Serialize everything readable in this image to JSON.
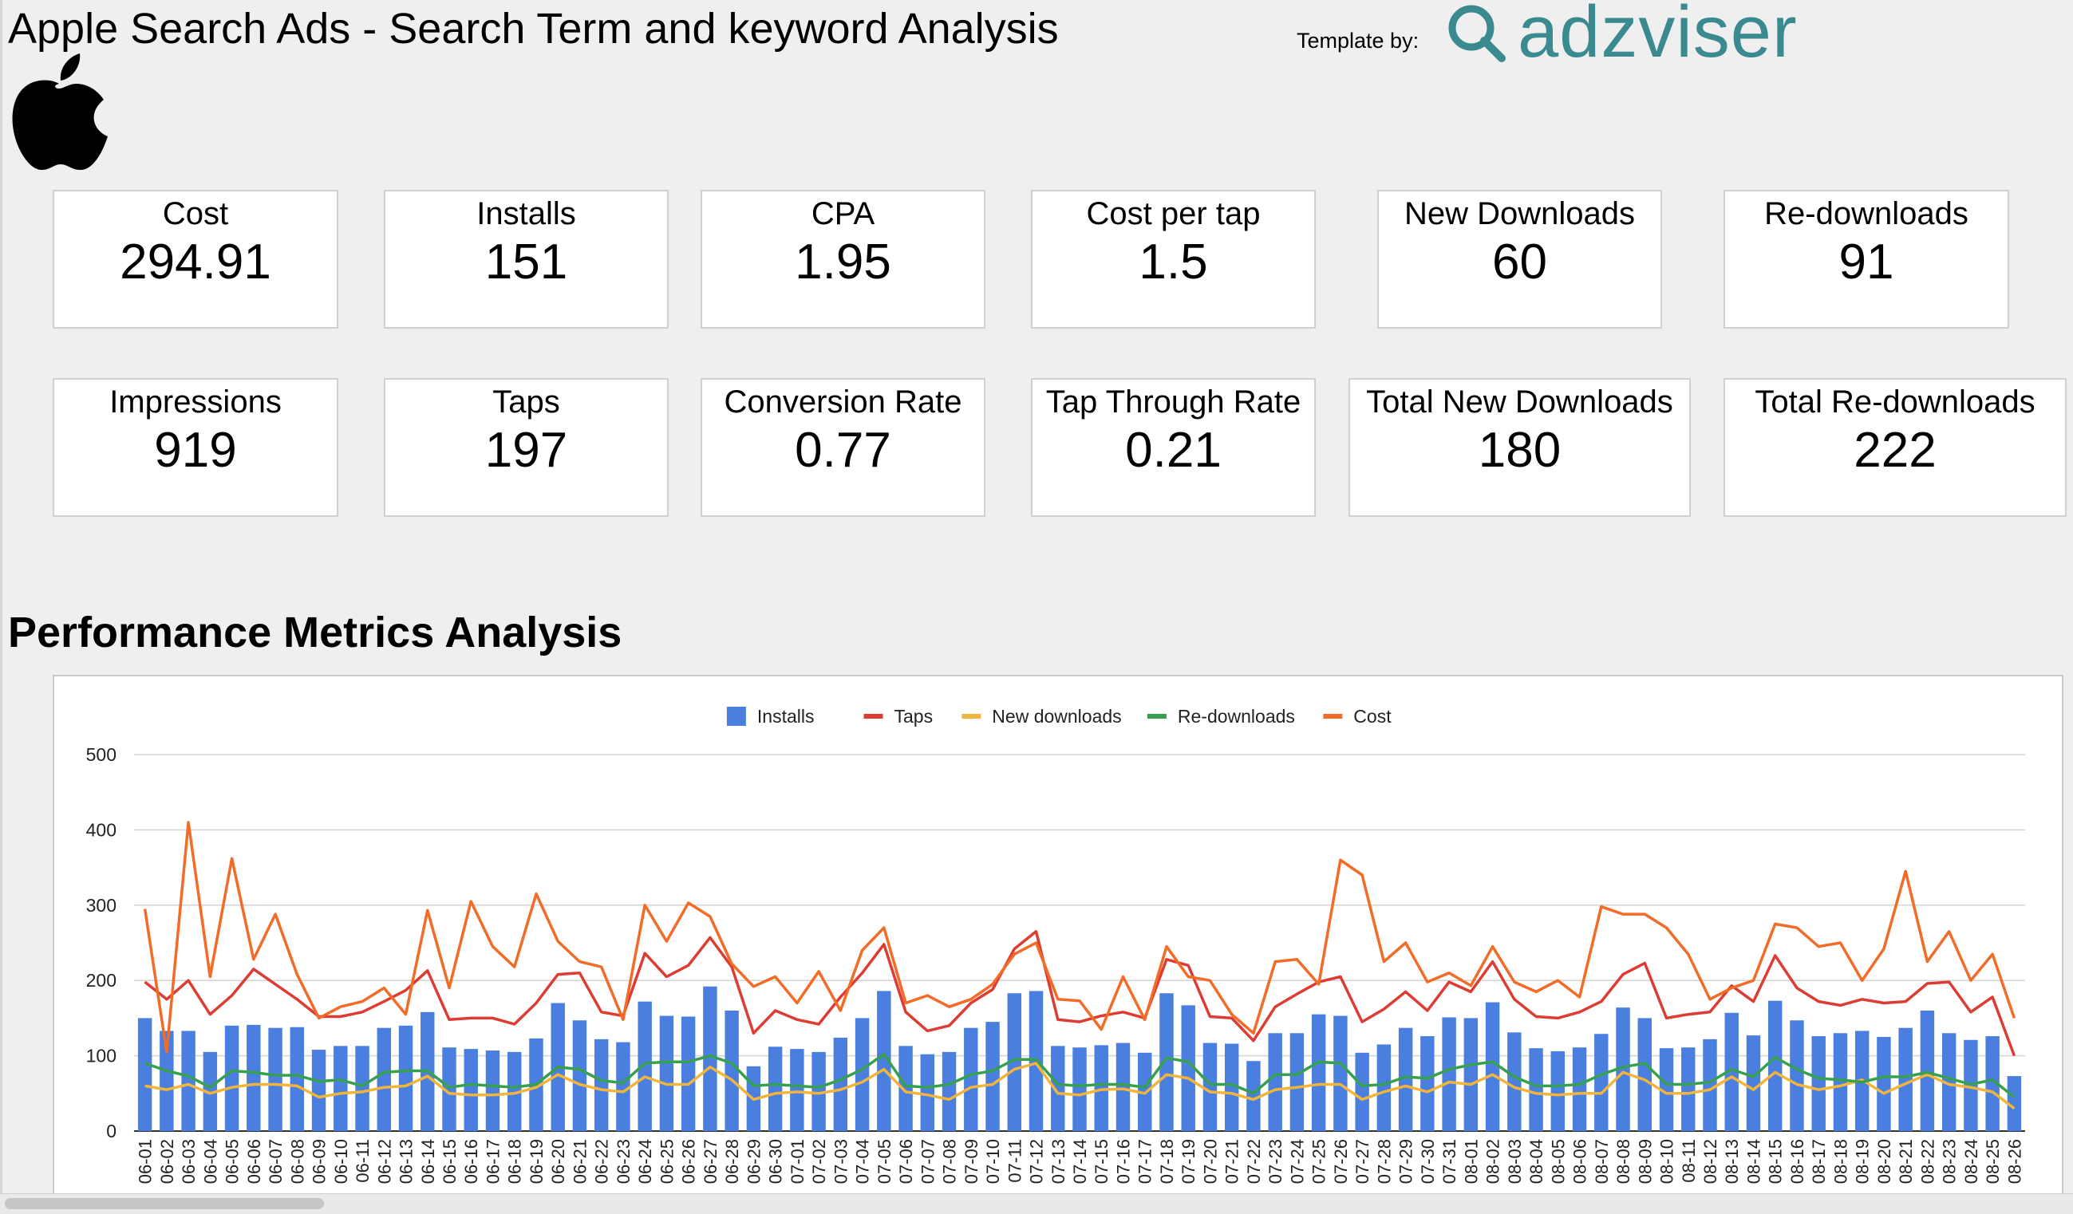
{
  "header": {
    "title": "Apple Search Ads - Search Term and keyword Analysis",
    "template_by_label": "Template by:",
    "brand_name": "adzviser",
    "brand_color": "#3a8a8f"
  },
  "kpi_row1": [
    {
      "label": "Cost",
      "value": "294.91"
    },
    {
      "label": "Installs",
      "value": "151"
    },
    {
      "label": "CPA",
      "value": "1.95"
    },
    {
      "label": "Cost per tap",
      "value": "1.5"
    },
    {
      "label": "New Downloads",
      "value": "60"
    },
    {
      "label": "Re-downloads",
      "value": "91"
    }
  ],
  "kpi_row2": [
    {
      "label": "Impressions",
      "value": "919"
    },
    {
      "label": "Taps",
      "value": "197"
    },
    {
      "label": "Conversion Rate",
      "value": "0.77"
    },
    {
      "label": "Tap Through Rate",
      "value": "0.21"
    },
    {
      "label": "Total New Downloads",
      "value": "180"
    },
    {
      "label": "Total Re-downloads",
      "value": "222"
    }
  ],
  "section_title": "Performance Metrics Analysis",
  "chart_data": {
    "type": "bar",
    "title": "",
    "xlabel": "",
    "ylabel": "",
    "ylim": [
      0,
      500
    ],
    "yticks": [
      0,
      100,
      200,
      300,
      400,
      500
    ],
    "grid": true,
    "legend_position": "top",
    "categories": [
      "06-01",
      "06-02",
      "06-03",
      "06-04",
      "06-05",
      "06-06",
      "06-07",
      "06-08",
      "06-09",
      "06-10",
      "06-11",
      "06-12",
      "06-13",
      "06-14",
      "06-15",
      "06-16",
      "06-17",
      "06-18",
      "06-19",
      "06-20",
      "06-21",
      "06-22",
      "06-23",
      "06-24",
      "06-25",
      "06-26",
      "06-27",
      "06-28",
      "06-29",
      "06-30",
      "07-01",
      "07-02",
      "07-03",
      "07-04",
      "07-05",
      "07-06",
      "07-07",
      "07-08",
      "07-09",
      "07-10",
      "07-11",
      "07-12",
      "07-13",
      "07-14",
      "07-15",
      "07-16",
      "07-17",
      "07-18",
      "07-19",
      "07-20",
      "07-21",
      "07-22",
      "07-23",
      "07-24",
      "07-25",
      "07-26",
      "07-27",
      "07-28",
      "07-29",
      "07-30",
      "07-31",
      "08-01",
      "08-02",
      "08-03",
      "08-04",
      "08-05",
      "08-06",
      "08-07",
      "08-08",
      "08-09",
      "08-10",
      "08-11",
      "08-12",
      "08-13",
      "08-14",
      "08-15",
      "08-16",
      "08-17",
      "08-18",
      "08-19",
      "08-20",
      "08-21",
      "08-22",
      "08-23",
      "08-24",
      "08-25",
      "08-26"
    ],
    "series": [
      {
        "name": "Installs",
        "type": "bar",
        "color": "#4a7fe0",
        "values": [
          150,
          133,
          133,
          105,
          140,
          141,
          137,
          138,
          108,
          113,
          113,
          137,
          140,
          158,
          111,
          109,
          107,
          105,
          123,
          170,
          147,
          122,
          118,
          172,
          153,
          152,
          192,
          160,
          86,
          112,
          109,
          105,
          124,
          150,
          186,
          113,
          102,
          105,
          137,
          145,
          183,
          186,
          113,
          111,
          114,
          117,
          104,
          183,
          167,
          117,
          116,
          93,
          130,
          130,
          155,
          153,
          104,
          115,
          137,
          126,
          151,
          150,
          171,
          131,
          110,
          106,
          111,
          129,
          164,
          150,
          110,
          111,
          122,
          157,
          127,
          173,
          147,
          126,
          130,
          133,
          125,
          137,
          160,
          130,
          121,
          126,
          73
        ]
      },
      {
        "name": "Taps",
        "type": "line",
        "color": "#dd3c33",
        "values": [
          198,
          175,
          200,
          155,
          180,
          215,
          195,
          175,
          152,
          152,
          158,
          172,
          187,
          213,
          148,
          150,
          150,
          142,
          170,
          208,
          210,
          158,
          153,
          236,
          205,
          220,
          257,
          218,
          130,
          160,
          148,
          142,
          178,
          210,
          248,
          158,
          133,
          140,
          170,
          188,
          242,
          265,
          148,
          145,
          153,
          158,
          150,
          228,
          220,
          152,
          150,
          120,
          165,
          182,
          198,
          205,
          145,
          162,
          185,
          160,
          198,
          185,
          225,
          175,
          152,
          150,
          158,
          172,
          208,
          223,
          150,
          155,
          158,
          193,
          172,
          233,
          190,
          172,
          167,
          175,
          170,
          172,
          196,
          198,
          158,
          178,
          100
        ]
      },
      {
        "name": "New downloads",
        "type": "line",
        "color": "#f1b53b",
        "values": [
          60,
          55,
          62,
          50,
          58,
          62,
          62,
          60,
          45,
          50,
          52,
          58,
          60,
          73,
          50,
          48,
          48,
          50,
          58,
          75,
          62,
          55,
          52,
          72,
          62,
          62,
          85,
          68,
          42,
          50,
          52,
          50,
          55,
          65,
          82,
          52,
          48,
          42,
          58,
          62,
          82,
          90,
          50,
          48,
          55,
          56,
          50,
          75,
          70,
          52,
          50,
          42,
          55,
          58,
          62,
          62,
          42,
          52,
          60,
          52,
          65,
          62,
          75,
          58,
          50,
          48,
          50,
          50,
          78,
          68,
          50,
          50,
          55,
          72,
          55,
          78,
          62,
          55,
          60,
          68,
          50,
          63,
          75,
          62,
          58,
          52,
          30
        ]
      },
      {
        "name": "Re-downloads",
        "type": "line",
        "color": "#37a04e",
        "values": [
          90,
          80,
          73,
          58,
          80,
          78,
          74,
          74,
          66,
          68,
          60,
          78,
          80,
          80,
          58,
          62,
          60,
          58,
          62,
          85,
          82,
          67,
          64,
          90,
          92,
          92,
          100,
          90,
          60,
          62,
          60,
          58,
          68,
          82,
          102,
          60,
          58,
          62,
          75,
          80,
          95,
          95,
          62,
          60,
          62,
          62,
          58,
          97,
          92,
          62,
          62,
          50,
          75,
          75,
          92,
          90,
          60,
          62,
          72,
          70,
          82,
          88,
          92,
          72,
          60,
          60,
          62,
          75,
          85,
          90,
          62,
          62,
          65,
          82,
          72,
          98,
          82,
          70,
          68,
          65,
          72,
          72,
          78,
          70,
          62,
          68,
          45
        ]
      },
      {
        "name": "Cost",
        "type": "line",
        "color": "#f26b27",
        "values": [
          295,
          105,
          410,
          205,
          362,
          228,
          288,
          208,
          150,
          165,
          172,
          190,
          155,
          293,
          190,
          305,
          245,
          218,
          315,
          252,
          225,
          218,
          148,
          300,
          252,
          303,
          285,
          222,
          192,
          205,
          170,
          212,
          160,
          240,
          270,
          170,
          180,
          165,
          175,
          195,
          235,
          250,
          175,
          173,
          135,
          205,
          148,
          245,
          205,
          200,
          155,
          130,
          225,
          228,
          195,
          360,
          340,
          225,
          250,
          198,
          210,
          193,
          245,
          198,
          185,
          200,
          178,
          298,
          288,
          288,
          270,
          235,
          175,
          190,
          200,
          275,
          270,
          245,
          250,
          200,
          242,
          345,
          225,
          265,
          200,
          235,
          150
        ]
      }
    ]
  }
}
